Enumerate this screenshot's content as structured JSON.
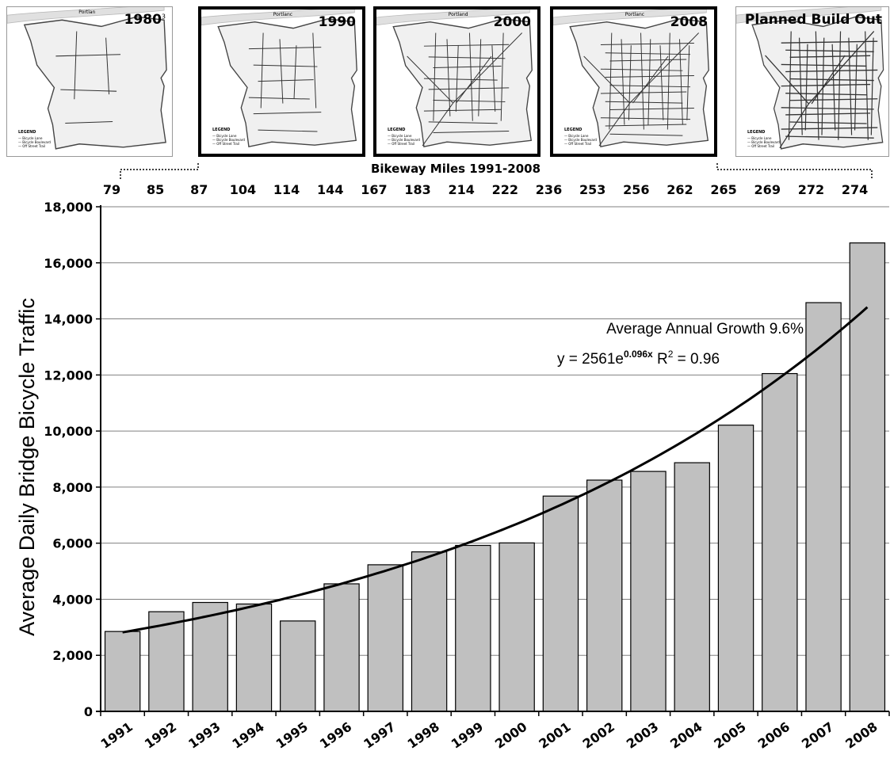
{
  "maps": [
    {
      "label": "1980",
      "marker": "3",
      "city": "Portlan",
      "legend_title": "LEGEND",
      "legend_items": [
        "Bicycle Lane",
        "Bicycle Boulevard",
        "Off Street Trail"
      ],
      "highlighted": false,
      "network_density": 0.08
    },
    {
      "label": "1990",
      "city": "Portlanc",
      "legend_title": "LEGEND",
      "legend_items": [
        "Bicycle Lane",
        "Bicycle Boulevard",
        "Off Street Trail"
      ],
      "highlighted": true,
      "network_density": 0.3
    },
    {
      "label": "2000",
      "city": "Portland",
      "legend_title": "LEGEND",
      "legend_items": [
        "Bicycle Lane",
        "Bicycle Boulevard",
        "Off Street Trail"
      ],
      "highlighted": true,
      "network_density": 0.6
    },
    {
      "label": "2008",
      "city": "Portlanc",
      "legend_title": "LEGEND",
      "legend_items": [
        "Bicycle Lane",
        "Bicycle Boulevard",
        "Off Street Trail"
      ],
      "highlighted": true,
      "network_density": 0.8
    },
    {
      "label": "Planned Build Out",
      "legend_title": "LEGEND",
      "legend_items": [
        "Bicycle Lane",
        "Bicycle Boulevard",
        "Off Street Trail"
      ],
      "highlighted": false,
      "network_density": 1.0
    }
  ],
  "bikeway_miles": {
    "label": "Bikeway Miles 1991-2008",
    "values": [
      79,
      85,
      87,
      104,
      114,
      144,
      167,
      183,
      214,
      222,
      236,
      253,
      256,
      262,
      265,
      269,
      272,
      274
    ]
  },
  "chart_data": {
    "type": "bar",
    "title": "",
    "xlabel": "",
    "ylabel": "Average Daily Bridge Bicycle Traffic",
    "categories": [
      "1991",
      "1992",
      "1993",
      "1994",
      "1995",
      "1996",
      "1997",
      "1998",
      "1999",
      "2000",
      "2001",
      "2002",
      "2003",
      "2004",
      "2005",
      "2006",
      "2007",
      "2008"
    ],
    "values": [
      2850,
      3555,
      3885,
      3830,
      3225,
      4550,
      5230,
      5690,
      5920,
      6010,
      7680,
      8250,
      8560,
      8870,
      10210,
      12050,
      14580,
      16710
    ],
    "ylim": [
      0,
      18000
    ],
    "yticks": [
      0,
      2000,
      4000,
      6000,
      8000,
      10000,
      12000,
      14000,
      16000,
      18000
    ],
    "ytick_labels": [
      "0",
      "2,000",
      "4,000",
      "6,000",
      "8,000",
      "10,000",
      "12,000",
      "14,000",
      "16,000",
      "18,000"
    ],
    "grid": true,
    "bar_color": "#c0c0c0",
    "trendline": {
      "type": "exponential",
      "a": 2561,
      "b": 0.096,
      "label_line1": "Average Annual Growth 9.6%",
      "label_prefix": "y = 2561e",
      "label_exponent": "0.096x",
      "label_r": " R",
      "label_r_sup": "2",
      "label_r_value": " = 0.96"
    }
  }
}
